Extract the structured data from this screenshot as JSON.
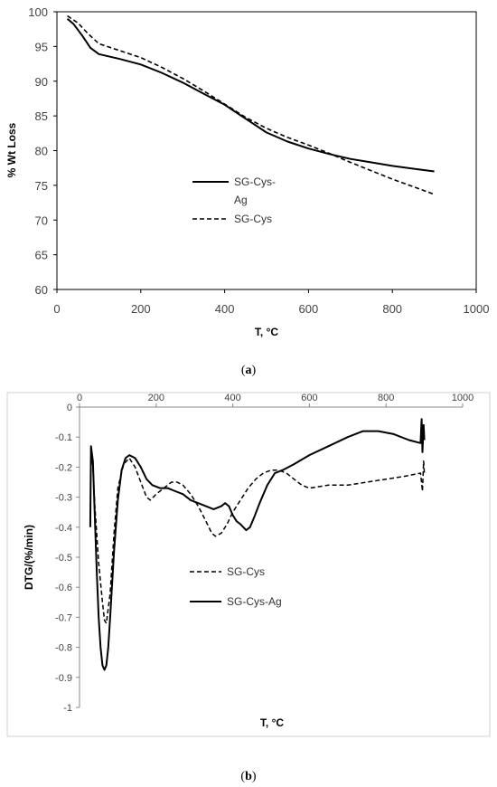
{
  "chart_data": [
    {
      "type": "line",
      "caption_letter": "a",
      "xlabel": "T, °C",
      "ylabel": "% Wt Loss",
      "xlim": [
        0,
        1000
      ],
      "ylim": [
        60,
        100
      ],
      "x_ticks": [
        "0",
        "200",
        "400",
        "600",
        "800",
        "1000"
      ],
      "y_ticks": [
        "60",
        "65",
        "70",
        "75",
        "80",
        "85",
        "90",
        "95",
        "100"
      ],
      "legend_placement": "center-left",
      "series": [
        {
          "name": "SG-Cys-Ag",
          "legend_lines": [
            "SG-Cys-",
            "Ag"
          ],
          "style": "solid",
          "points": [
            [
              25,
              99.0
            ],
            [
              40,
              98.2
            ],
            [
              60,
              96.6
            ],
            [
              80,
              94.8
            ],
            [
              100,
              93.9
            ],
            [
              150,
              93.2
            ],
            [
              200,
              92.4
            ],
            [
              250,
              91.2
            ],
            [
              300,
              89.8
            ],
            [
              350,
              88.2
            ],
            [
              400,
              86.6
            ],
            [
              450,
              84.6
            ],
            [
              500,
              82.6
            ],
            [
              550,
              81.3
            ],
            [
              600,
              80.3
            ],
            [
              650,
              79.5
            ],
            [
              700,
              78.8
            ],
            [
              750,
              78.3
            ],
            [
              800,
              77.8
            ],
            [
              850,
              77.4
            ],
            [
              900,
              77.0
            ]
          ]
        },
        {
          "name": "SG-Cys",
          "legend_lines": [
            "SG-Cys"
          ],
          "style": "dashed",
          "points": [
            [
              25,
              99.4
            ],
            [
              50,
              98.4
            ],
            [
              75,
              96.8
            ],
            [
              100,
              95.4
            ],
            [
              150,
              94.4
            ],
            [
              200,
              93.4
            ],
            [
              250,
              92.0
            ],
            [
              300,
              90.4
            ],
            [
              350,
              88.6
            ],
            [
              400,
              86.7
            ],
            [
              450,
              84.8
            ],
            [
              500,
              83.2
            ],
            [
              550,
              81.9
            ],
            [
              600,
              80.8
            ],
            [
              650,
              79.6
            ],
            [
              700,
              78.3
            ],
            [
              750,
              77.1
            ],
            [
              800,
              75.9
            ],
            [
              850,
              74.8
            ],
            [
              900,
              73.7
            ]
          ]
        }
      ]
    },
    {
      "type": "line",
      "caption_letter": "b",
      "xlabel": "T, °C",
      "ylabel": "DTG/(%/min)",
      "xlim": [
        0,
        1000
      ],
      "ylim": [
        -1,
        0
      ],
      "x_ticks": [
        "0",
        "200",
        "400",
        "600",
        "800",
        "1000"
      ],
      "y_ticks": [
        "0",
        "-0.1",
        "-0.2",
        "-0.3",
        "-0.4",
        "-0.5",
        "-0.6",
        "-0.7",
        "-0.8",
        "-0.9",
        "-1"
      ],
      "legend_placement": "center-left",
      "series": [
        {
          "name": "SG-Cys",
          "legend_lines": [
            "SG-Cys"
          ],
          "style": "dashed",
          "points": [
            [
              30,
              -0.13
            ],
            [
              35,
              -0.2
            ],
            [
              40,
              -0.33
            ],
            [
              50,
              -0.52
            ],
            [
              60,
              -0.65
            ],
            [
              65,
              -0.71
            ],
            [
              70,
              -0.72
            ],
            [
              80,
              -0.62
            ],
            [
              90,
              -0.42
            ],
            [
              100,
              -0.27
            ],
            [
              115,
              -0.19
            ],
            [
              130,
              -0.17
            ],
            [
              145,
              -0.2
            ],
            [
              160,
              -0.25
            ],
            [
              175,
              -0.3
            ],
            [
              185,
              -0.31
            ],
            [
              200,
              -0.29
            ],
            [
              220,
              -0.27
            ],
            [
              240,
              -0.25
            ],
            [
              255,
              -0.25
            ],
            [
              270,
              -0.26
            ],
            [
              290,
              -0.29
            ],
            [
              310,
              -0.33
            ],
            [
              330,
              -0.38
            ],
            [
              345,
              -0.42
            ],
            [
              355,
              -0.43
            ],
            [
              370,
              -0.42
            ],
            [
              385,
              -0.39
            ],
            [
              400,
              -0.35
            ],
            [
              420,
              -0.31
            ],
            [
              440,
              -0.27
            ],
            [
              460,
              -0.24
            ],
            [
              480,
              -0.22
            ],
            [
              500,
              -0.21
            ],
            [
              520,
              -0.21
            ],
            [
              540,
              -0.22
            ],
            [
              560,
              -0.24
            ],
            [
              580,
              -0.26
            ],
            [
              600,
              -0.27
            ],
            [
              650,
              -0.26
            ],
            [
              700,
              -0.26
            ],
            [
              750,
              -0.25
            ],
            [
              800,
              -0.24
            ],
            [
              850,
              -0.23
            ],
            [
              890,
              -0.22
            ],
            [
              895,
              -0.28
            ],
            [
              898,
              -0.18
            ],
            [
              900,
              -0.22
            ]
          ]
        },
        {
          "name": "SG-Cys-Ag",
          "legend_lines": [
            "SG-Cys-Ag"
          ],
          "style": "solid",
          "points": [
            [
              28,
              -0.4
            ],
            [
              30,
              -0.13
            ],
            [
              35,
              -0.18
            ],
            [
              40,
              -0.37
            ],
            [
              45,
              -0.55
            ],
            [
              50,
              -0.7
            ],
            [
              55,
              -0.8
            ],
            [
              60,
              -0.86
            ],
            [
              65,
              -0.875
            ],
            [
              70,
              -0.86
            ],
            [
              75,
              -0.8
            ],
            [
              80,
              -0.7
            ],
            [
              90,
              -0.48
            ],
            [
              100,
              -0.31
            ],
            [
              110,
              -0.21
            ],
            [
              120,
              -0.17
            ],
            [
              130,
              -0.16
            ],
            [
              145,
              -0.17
            ],
            [
              160,
              -0.2
            ],
            [
              175,
              -0.24
            ],
            [
              190,
              -0.26
            ],
            [
              210,
              -0.27
            ],
            [
              230,
              -0.27
            ],
            [
              250,
              -0.28
            ],
            [
              270,
              -0.29
            ],
            [
              290,
              -0.31
            ],
            [
              310,
              -0.32
            ],
            [
              330,
              -0.33
            ],
            [
              350,
              -0.34
            ],
            [
              370,
              -0.33
            ],
            [
              380,
              -0.32
            ],
            [
              390,
              -0.33
            ],
            [
              400,
              -0.36
            ],
            [
              410,
              -0.38
            ],
            [
              420,
              -0.39
            ],
            [
              435,
              -0.41
            ],
            [
              445,
              -0.4
            ],
            [
              455,
              -0.37
            ],
            [
              470,
              -0.32
            ],
            [
              490,
              -0.26
            ],
            [
              510,
              -0.22
            ],
            [
              530,
              -0.21
            ],
            [
              560,
              -0.19
            ],
            [
              600,
              -0.16
            ],
            [
              650,
              -0.13
            ],
            [
              700,
              -0.1
            ],
            [
              740,
              -0.08
            ],
            [
              780,
              -0.08
            ],
            [
              820,
              -0.09
            ],
            [
              860,
              -0.11
            ],
            [
              890,
              -0.12
            ],
            [
              893,
              -0.04
            ],
            [
              895,
              -0.15
            ],
            [
              898,
              -0.06
            ],
            [
              900,
              -0.11
            ]
          ]
        }
      ]
    }
  ]
}
